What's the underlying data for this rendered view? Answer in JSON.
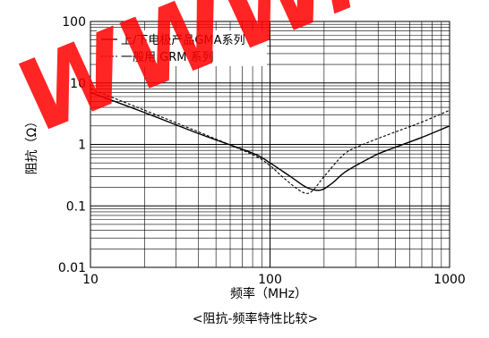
{
  "chart_data": {
    "type": "line",
    "x_scale": "log",
    "y_scale": "log",
    "xlim": [
      10,
      1000
    ],
    "ylim": [
      0.01,
      100
    ],
    "x_ticks": [
      "10",
      "100",
      "1000"
    ],
    "y_ticks": [
      "100",
      "10",
      "1",
      "0.1",
      "0.01"
    ],
    "xlabel": "频率（MHz）",
    "ylabel": "阻抗（Ω）",
    "caption": "<阻抗-频率特性比较>",
    "grid": true,
    "legend_position": "top-left",
    "series": [
      {
        "name": "上/下电极产品GMA系列",
        "style": "solid",
        "color": "#000000",
        "x": [
          10,
          20,
          40,
          80,
          100,
          130,
          160,
          190,
          220,
          260,
          320,
          400,
          500,
          700,
          1000
        ],
        "y": [
          7.0,
          3.3,
          1.5,
          0.72,
          0.5,
          0.3,
          0.2,
          0.18,
          0.23,
          0.35,
          0.5,
          0.7,
          0.9,
          1.3,
          2.0
        ]
      },
      {
        "name": "一般用 GRM 系列",
        "style": "dashed",
        "color": "#000000",
        "x": [
          10,
          20,
          40,
          80,
          100,
          120,
          150,
          170,
          200,
          260,
          330,
          500,
          700,
          1000
        ],
        "y": [
          8.0,
          3.6,
          1.6,
          0.68,
          0.45,
          0.28,
          0.17,
          0.17,
          0.3,
          0.7,
          1.0,
          1.6,
          2.3,
          3.6
        ]
      }
    ]
  },
  "watermark": {
    "text": "WWW.",
    "color": "#ff0000"
  }
}
